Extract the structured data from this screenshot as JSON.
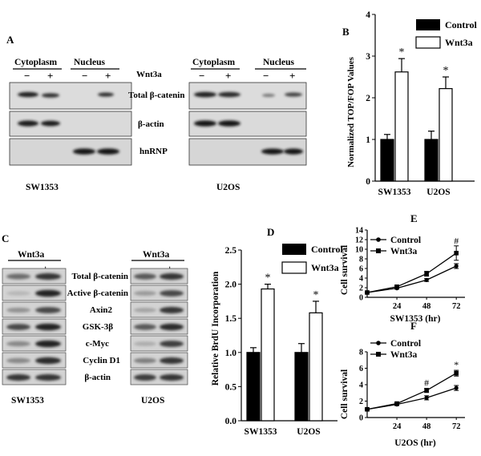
{
  "panel_a": {
    "letter": "A",
    "cytoplasm_label": "Cytoplasm",
    "nucleus_label": "Nucleus",
    "treatment_label": "Wnt3a",
    "minus": "−",
    "plus": "+",
    "rows": [
      "Total β-catenin",
      "β-actin",
      "hnRNP"
    ],
    "cell_lines": [
      "SW1353",
      "U2OS"
    ]
  },
  "panel_b": {
    "letter": "B",
    "chart_data": {
      "type": "bar",
      "categories": [
        "SW1353",
        "U2OS"
      ],
      "series": [
        {
          "name": "Control",
          "values": [
            1.0,
            1.0
          ],
          "errors": [
            0.12,
            0.2
          ],
          "color": "#000000"
        },
        {
          "name": "Wnt3a",
          "values": [
            2.62,
            2.22
          ],
          "errors": [
            0.32,
            0.28
          ],
          "color": "#ffffff"
        }
      ],
      "ylabel": "Normalized TOP/FOP Values",
      "ylim": [
        0,
        4
      ],
      "yticks": [
        "0",
        "1",
        "2",
        "3",
        "4"
      ],
      "significance": [
        "*",
        "*"
      ],
      "legend": "top-right"
    }
  },
  "panel_c": {
    "letter": "C",
    "treatment_label": "Wnt3a",
    "minus": "−",
    "plus": "+",
    "rows": [
      "Total β-catenin",
      "Active β-catenin",
      "Axin2",
      "GSK-3β",
      "c-Myc",
      "Cyclin D1",
      "β-actin"
    ],
    "cell_lines": [
      "SW1353",
      "U2OS"
    ]
  },
  "panel_d": {
    "letter": "D",
    "chart_data": {
      "type": "bar",
      "categories": [
        "SW1353",
        "U2OS"
      ],
      "series": [
        {
          "name": "Control",
          "values": [
            1.0,
            1.0
          ],
          "errors": [
            0.07,
            0.13
          ],
          "color": "#000000"
        },
        {
          "name": "Wnt3a",
          "values": [
            1.93,
            1.58
          ],
          "errors": [
            0.07,
            0.17
          ],
          "color": "#ffffff"
        }
      ],
      "ylabel": "Relative BrdU Incorporation",
      "ylim": [
        0,
        2.5
      ],
      "yticks": [
        "0.0",
        "0.5",
        "1.0",
        "1.5",
        "2.0",
        "2.5"
      ],
      "significance": [
        "*",
        "*"
      ],
      "legend": "top-right"
    }
  },
  "panel_e": {
    "letter": "E",
    "chart_data": {
      "type": "line",
      "x": [
        0,
        24,
        48,
        72
      ],
      "xticks": [
        "24",
        "48",
        "72"
      ],
      "series": [
        {
          "name": "Control",
          "marker": "circle",
          "values": [
            1.0,
            1.9,
            3.6,
            6.5
          ],
          "errors": [
            0.1,
            0.2,
            0.3,
            0.5
          ]
        },
        {
          "name": "Wnt3a",
          "marker": "square",
          "values": [
            1.0,
            2.2,
            4.9,
            9.2
          ],
          "errors": [
            0.1,
            0.3,
            0.5,
            1.5
          ]
        }
      ],
      "xlabel": "SW1353 (hr)",
      "ylabel": "Cell survival",
      "ylim": [
        0,
        14
      ],
      "yticks": [
        "0",
        "2",
        "4",
        "6",
        "8",
        "10",
        "12",
        "14"
      ],
      "annotation": "#",
      "legend": "top-left"
    }
  },
  "panel_f": {
    "letter": "F",
    "chart_data": {
      "type": "line",
      "x": [
        0,
        24,
        48,
        72
      ],
      "xticks": [
        "24",
        "48",
        "72"
      ],
      "series": [
        {
          "name": "Control",
          "marker": "circle",
          "values": [
            1.0,
            1.6,
            2.4,
            3.6
          ],
          "errors": [
            0.1,
            0.15,
            0.25,
            0.3
          ]
        },
        {
          "name": "Wnt3a",
          "marker": "square",
          "values": [
            1.0,
            1.7,
            3.3,
            5.4
          ],
          "errors": [
            0.1,
            0.15,
            0.25,
            0.35
          ]
        }
      ],
      "xlabel": "U2OS (hr)",
      "ylabel": "Cell survival",
      "ylim": [
        0,
        8
      ],
      "yticks": [
        "0",
        "2",
        "4",
        "6",
        "8"
      ],
      "annotations": [
        "#",
        "*"
      ],
      "legend": "top-left"
    }
  }
}
